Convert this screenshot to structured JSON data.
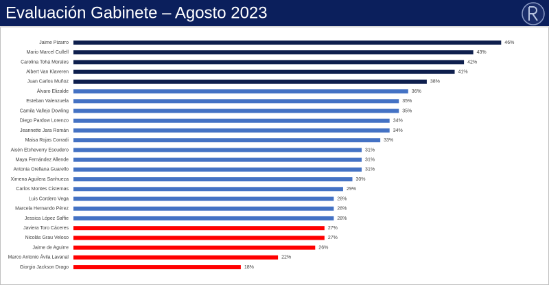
{
  "chart_data": {
    "type": "bar",
    "orientation": "horizontal",
    "title": "Evaluación Gabinete – Agosto 2023",
    "categories": [
      "Jaime Pizarro",
      "Mario Marcel Cullell",
      "Carolina Tohá Morales",
      "Albert Van Klaveren",
      "Juan Carlos Muñoz",
      "Álvaro Elizalde",
      "Esteban Valenzuela",
      "Camila Vallejo Dowling",
      "Diego Pardow Lorenzo",
      "Jeannette Jara Román",
      "Maisa Rojas Corradi",
      "Aisén Etcheverry Escudero",
      "Maya Fernández Allende",
      "Antonia Orellana Guarello",
      "Ximena Aguilera Sanhueza",
      "Carlos Montes Cisternas",
      "Luis Cordero Vega",
      "Marcela Hernando Pérez",
      "Jessica López Saffie",
      "Javiera Toro Cáceres",
      "Nicolás Grau Veloso",
      "Jaime de Aguirre",
      "Marco Antonio Ávila Lavanal",
      "Giorgio Jackson Drago"
    ],
    "values": [
      46,
      43,
      42,
      41,
      38,
      36,
      35,
      35,
      34,
      34,
      33,
      31,
      31,
      31,
      30,
      29,
      28,
      28,
      28,
      27,
      27,
      26,
      22,
      18
    ],
    "value_labels": [
      "46%",
      "43%",
      "42%",
      "41%",
      "38%",
      "36%",
      "35%",
      "35%",
      "34%",
      "34%",
      "33%",
      "31%",
      "31%",
      "31%",
      "30%",
      "29%",
      "28%",
      "28%",
      "28%",
      "27%",
      "27%",
      "26%",
      "22%",
      "18%"
    ],
    "colors": [
      "#0e1f4d",
      "#0e1f4d",
      "#0e1f4d",
      "#0e1f4d",
      "#0e1f4d",
      "#4472c4",
      "#4472c4",
      "#4472c4",
      "#4472c4",
      "#4472c4",
      "#4472c4",
      "#4472c4",
      "#4472c4",
      "#4472c4",
      "#4472c4",
      "#4472c4",
      "#4472c4",
      "#4472c4",
      "#4472c4",
      "#ff0000",
      "#ff0000",
      "#ff0000",
      "#ff0000",
      "#ff0000"
    ]
  }
}
